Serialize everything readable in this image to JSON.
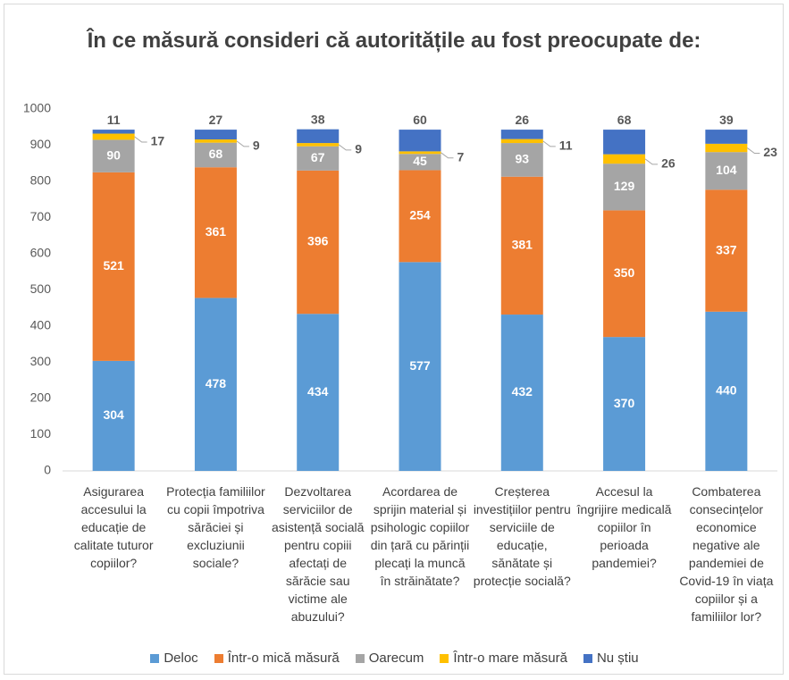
{
  "chart_data": {
    "type": "stacked_bar",
    "title": "În ce măsură consideri că autoritățile au fost preocupate de:",
    "categories": [
      "Asigurarea accesului la educație de calitate tuturor copiilor?",
      "Protecția familiilor cu copii împotriva sărăciei și excluziunii sociale?",
      "Dezvoltarea serviciilor de asistență socială pentru copiii afectați de sărăcie sau victime ale abuzului?",
      "Acordarea de sprijin material și psihologic copiilor din țară cu părinții plecați la muncă în străinătate?",
      "Creșterea investițiilor pentru serviciile de educație, sănătate și protecție socială?",
      "Accesul la îngrijire medicală copiilor în perioada pandemiei?",
      "Combaterea consecințelor economice negative ale pandemiei de Covid-19 în viața copiilor și a familiilor lor?"
    ],
    "series": [
      {
        "name": "Deloc",
        "color": "#5b9bd5",
        "values": [
          304,
          478,
          434,
          577,
          432,
          370,
          440
        ]
      },
      {
        "name": "Într-o mică măsură",
        "color": "#ed7d31",
        "values": [
          521,
          361,
          396,
          254,
          381,
          350,
          337
        ]
      },
      {
        "name": "Oarecum",
        "color": "#a5a5a5",
        "values": [
          90,
          68,
          67,
          45,
          93,
          129,
          104
        ]
      },
      {
        "name": "Într-o mare măsură",
        "color": "#ffc000",
        "values": [
          17,
          9,
          9,
          7,
          11,
          26,
          23
        ]
      },
      {
        "name": "Nu știu",
        "color": "#4472c4",
        "values": [
          11,
          27,
          38,
          60,
          26,
          68,
          39
        ]
      }
    ],
    "ylim": [
      0,
      1000
    ],
    "yticks": [
      0,
      100,
      200,
      300,
      400,
      500,
      600,
      700,
      800,
      900,
      1000
    ],
    "grid": false,
    "legend": "bottom"
  }
}
